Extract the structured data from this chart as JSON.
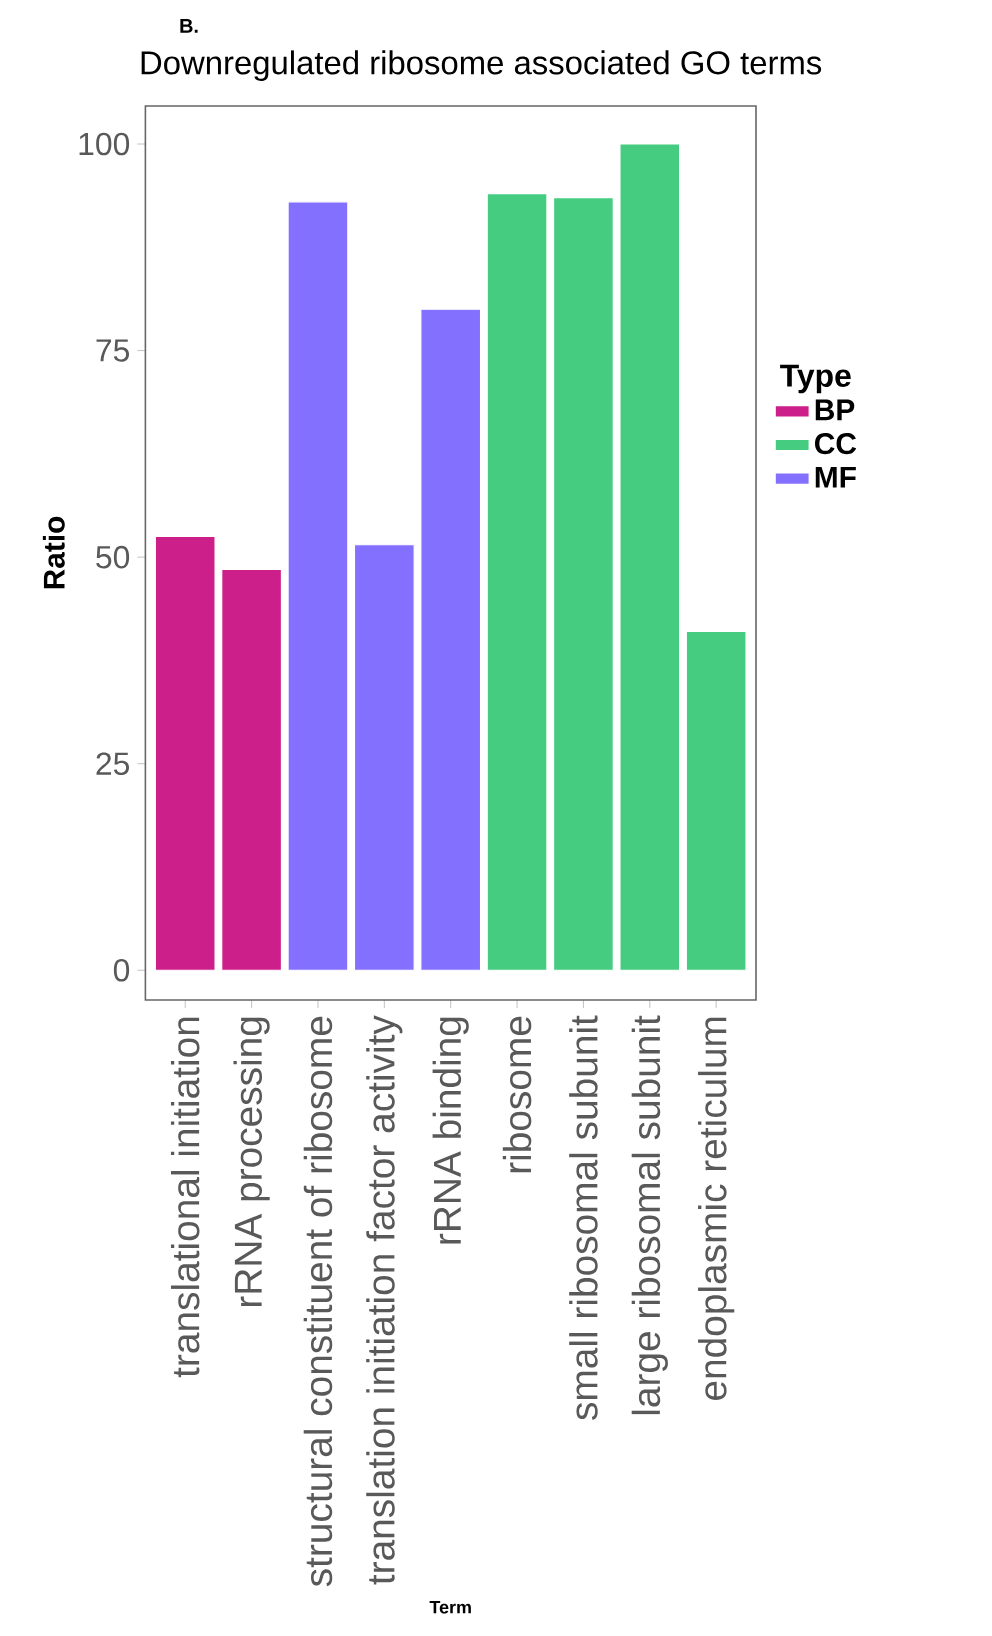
{
  "chart_data": {
    "type": "bar",
    "title": "Downregulated ribosome associated GO terms",
    "xlabel": "Term",
    "ylabel": "Ratio",
    "legend_title": "Type",
    "legend": "right",
    "annotations": [
      "B."
    ],
    "categories": [
      "translational initiation",
      "rRNA processing",
      "structural constituent of ribosome",
      "translation initiation factor activity",
      "rRNA binding",
      "ribosome",
      "small ribosomal subunit",
      "large ribosomal subunit",
      "endoplasmic reticulum"
    ],
    "series": [
      {
        "name": "BP",
        "color": "#cc1f8a",
        "values": [
          52.5,
          48.5,
          null,
          null,
          null,
          null,
          null,
          null,
          null
        ]
      },
      {
        "name": "CC",
        "color": "#45cc80",
        "values": [
          null,
          null,
          null,
          null,
          null,
          94,
          93.5,
          100,
          41
        ]
      },
      {
        "name": "MF",
        "color": "#8470ff",
        "values": [
          null,
          null,
          93,
          51.5,
          80,
          null,
          null,
          null,
          null
        ]
      }
    ],
    "ylim": [
      -3.6,
      104.6
    ],
    "yticks": [
      0,
      25,
      50,
      75,
      100
    ]
  }
}
